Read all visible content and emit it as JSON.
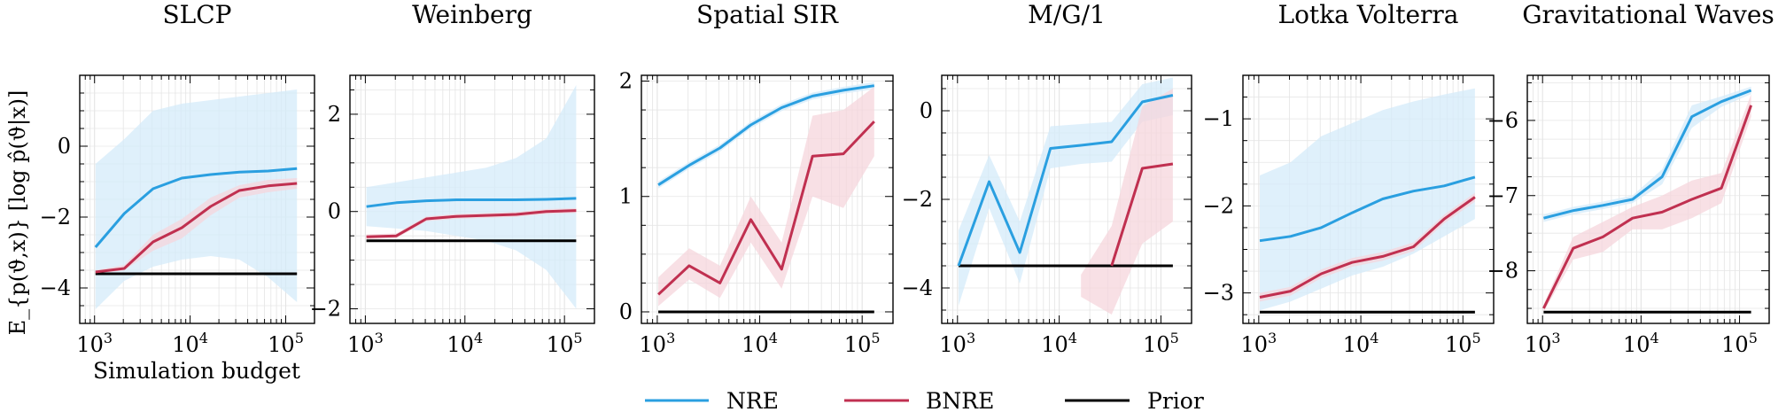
{
  "figure": {
    "ylabel": "E_{p(ϑ,x)} [log p̂(ϑ|x)]",
    "xlabel": "Simulation budget"
  },
  "colors": {
    "NRE": "#2a9fe0",
    "BNRE": "#c03050",
    "Prior": "#000000",
    "NRE_band": "#d4ebfa",
    "BNRE_band": "#f5d5dc"
  },
  "legend": {
    "placement": "bottom-center",
    "entries": [
      {
        "name": "NRE"
      },
      {
        "name": "BNRE"
      },
      {
        "name": "Prior"
      }
    ]
  },
  "chart_data": [
    {
      "type": "line",
      "title": "SLCP",
      "x_scale": "log",
      "xlim": [
        700,
        200000
      ],
      "ylim": [
        -5.0,
        2.0
      ],
      "xticks": [
        "10^3",
        "10^4",
        "10^5"
      ],
      "yticks": [
        0,
        -2,
        -4
      ],
      "grid": true,
      "x": [
        1024,
        2048,
        4096,
        8192,
        16384,
        32768,
        65536,
        131072
      ],
      "series": [
        {
          "name": "NRE",
          "values": [
            -2.85,
            -1.9,
            -1.2,
            -0.9,
            -0.8,
            -0.73,
            -0.7,
            -0.63
          ],
          "band_lower": [
            -4.6,
            -3.8,
            -3.4,
            -3.2,
            -3.1,
            -3.2,
            -3.7,
            -4.4
          ],
          "band_upper": [
            -0.5,
            0.2,
            1.0,
            1.2,
            1.3,
            1.4,
            1.5,
            1.6
          ]
        },
        {
          "name": "BNRE",
          "values": [
            -3.55,
            -3.45,
            -2.7,
            -2.3,
            -1.7,
            -1.25,
            -1.12,
            -1.05
          ],
          "band_lower": [
            -3.6,
            -3.5,
            -2.95,
            -2.6,
            -1.95,
            -1.45,
            -1.3,
            -1.2
          ],
          "band_upper": [
            -3.5,
            -3.35,
            -2.5,
            -2.05,
            -1.45,
            -1.1,
            -0.95,
            -0.9
          ]
        },
        {
          "name": "Prior",
          "values": [
            -3.6,
            -3.6,
            -3.6,
            -3.6,
            -3.6,
            -3.6,
            -3.6,
            -3.6
          ]
        }
      ]
    },
    {
      "type": "line",
      "title": "Weinberg",
      "x_scale": "log",
      "xlim": [
        700,
        200000
      ],
      "ylim": [
        -2.3,
        2.8
      ],
      "xticks": [
        "10^3",
        "10^4",
        "10^5"
      ],
      "yticks": [
        2,
        0,
        -2
      ],
      "grid": true,
      "x": [
        1024,
        2048,
        4096,
        8192,
        16384,
        32768,
        65536,
        131072
      ],
      "series": [
        {
          "name": "NRE",
          "values": [
            0.1,
            0.18,
            0.22,
            0.24,
            0.24,
            0.24,
            0.25,
            0.27
          ],
          "band_lower": [
            -0.3,
            -0.35,
            -0.4,
            -0.5,
            -0.6,
            -0.8,
            -1.2,
            -2.0
          ],
          "band_upper": [
            0.5,
            0.6,
            0.7,
            0.8,
            0.9,
            1.1,
            1.5,
            2.6
          ]
        },
        {
          "name": "BNRE",
          "values": [
            -0.52,
            -0.5,
            -0.15,
            -0.1,
            -0.08,
            -0.06,
            0.0,
            0.02
          ],
          "band_lower": [
            -0.57,
            -0.55,
            -0.2,
            -0.15,
            -0.13,
            -0.11,
            -0.05,
            -0.03
          ],
          "band_upper": [
            -0.47,
            -0.45,
            -0.1,
            -0.05,
            -0.03,
            -0.01,
            0.05,
            0.07
          ]
        },
        {
          "name": "Prior",
          "values": [
            -0.6,
            -0.6,
            -0.6,
            -0.6,
            -0.6,
            -0.6,
            -0.6,
            -0.6
          ]
        }
      ]
    },
    {
      "type": "line",
      "title": "Spatial SIR",
      "x_scale": "log",
      "xlim": [
        700,
        200000
      ],
      "ylim": [
        -0.1,
        2.05
      ],
      "xticks": [
        "10^3",
        "10^4",
        "10^5"
      ],
      "yticks": [
        2,
        1,
        0
      ],
      "grid": true,
      "x": [
        1024,
        2048,
        4096,
        8192,
        16384,
        32768,
        65536,
        131072
      ],
      "series": [
        {
          "name": "NRE",
          "values": [
            1.1,
            1.27,
            1.42,
            1.62,
            1.77,
            1.87,
            1.92,
            1.96
          ],
          "band_lower": [
            1.07,
            1.24,
            1.39,
            1.59,
            1.74,
            1.84,
            1.89,
            1.93
          ],
          "band_upper": [
            1.13,
            1.3,
            1.45,
            1.65,
            1.8,
            1.9,
            1.95,
            1.99
          ]
        },
        {
          "name": "BNRE",
          "values": [
            0.15,
            0.4,
            0.25,
            0.8,
            0.37,
            1.35,
            1.37,
            1.65
          ],
          "band_lower": [
            0.05,
            0.28,
            0.12,
            0.6,
            0.2,
            1.0,
            0.9,
            1.35
          ],
          "band_upper": [
            0.3,
            0.55,
            0.4,
            1.0,
            0.6,
            1.7,
            1.75,
            1.95
          ]
        },
        {
          "name": "Prior",
          "values": [
            0.0,
            0.0,
            0.0,
            0.0,
            0.0,
            0.0,
            0.0,
            0.0
          ]
        }
      ]
    },
    {
      "type": "line",
      "title": "M/G/1",
      "x_scale": "log",
      "xlim": [
        700,
        200000
      ],
      "ylim": [
        -4.8,
        0.8
      ],
      "xticks": [
        "10^3",
        "10^4",
        "10^5"
      ],
      "yticks": [
        0,
        -2,
        -4
      ],
      "grid": true,
      "x": [
        1024,
        2048,
        4096,
        8192,
        16384,
        32768,
        65536,
        131072
      ],
      "series": [
        {
          "name": "NRE",
          "values": [
            -3.5,
            -1.6,
            -3.2,
            -0.85,
            -0.78,
            -0.7,
            0.2,
            0.35
          ],
          "band_lower": [
            -4.4,
            -2.2,
            -3.9,
            -1.3,
            -1.2,
            -1.15,
            -0.25,
            -0.1
          ],
          "band_upper": [
            -2.7,
            -1.0,
            -2.5,
            -0.35,
            -0.3,
            -0.25,
            0.6,
            0.75
          ]
        },
        {
          "name": "BNRE",
          "values": [
            null,
            null,
            null,
            null,
            null,
            -3.5,
            -1.3,
            -1.2
          ],
          "band_lower": [
            null,
            null,
            null,
            null,
            -4.2,
            -4.6,
            -3.0,
            -2.5
          ],
          "band_upper": [
            null,
            null,
            null,
            null,
            -3.7,
            -2.6,
            0.1,
            0.5
          ]
        },
        {
          "name": "Prior",
          "values": [
            -3.5,
            -3.5,
            -3.5,
            -3.5,
            -3.5,
            -3.5,
            -3.5,
            -3.5
          ]
        }
      ]
    },
    {
      "type": "line",
      "title": "Lotka Volterra",
      "x_scale": "log",
      "xlim": [
        700,
        200000
      ],
      "ylim": [
        -3.35,
        -0.5
      ],
      "xticks": [
        "10^3",
        "10^4",
        "10^5"
      ],
      "yticks": [
        -1,
        -2,
        -3
      ],
      "grid": true,
      "x": [
        1024,
        2048,
        4096,
        8192,
        16384,
        32768,
        65536,
        131072
      ],
      "series": [
        {
          "name": "NRE",
          "values": [
            -2.4,
            -2.35,
            -2.25,
            -2.08,
            -1.92,
            -1.83,
            -1.77,
            -1.67
          ],
          "band_lower": [
            -3.2,
            -3.1,
            -2.95,
            -2.8,
            -2.7,
            -2.55,
            -2.35,
            -2.15
          ],
          "band_upper": [
            -1.65,
            -1.5,
            -1.2,
            -1.05,
            -0.9,
            -0.8,
            -0.72,
            -0.65
          ]
        },
        {
          "name": "BNRE",
          "values": [
            -3.05,
            -2.98,
            -2.78,
            -2.65,
            -2.58,
            -2.47,
            -2.15,
            -1.9
          ],
          "band_lower": [
            -3.1,
            -3.03,
            -2.83,
            -2.7,
            -2.63,
            -2.52,
            -2.2,
            -1.95
          ],
          "band_upper": [
            -3.0,
            -2.93,
            -2.73,
            -2.6,
            -2.53,
            -2.42,
            -2.1,
            -1.85
          ]
        },
        {
          "name": "Prior",
          "values": [
            -3.22,
            -3.22,
            -3.22,
            -3.22,
            -3.22,
            -3.22,
            -3.22,
            -3.22
          ]
        }
      ]
    },
    {
      "type": "line",
      "title": "Gravitational Waves",
      "x_scale": "log",
      "xlim": [
        700,
        200000
      ],
      "ylim": [
        -8.7,
        -5.4
      ],
      "xticks": [
        "10^3",
        "10^4",
        "10^5"
      ],
      "yticks": [
        -6,
        -7,
        -8
      ],
      "grid": true,
      "x": [
        1024,
        2048,
        4096,
        8192,
        16384,
        32768,
        65536,
        131072
      ],
      "series": [
        {
          "name": "NRE",
          "values": [
            -7.3,
            -7.2,
            -7.13,
            -7.05,
            -6.75,
            -5.95,
            -5.75,
            -5.6
          ],
          "band_lower": [
            -7.35,
            -7.25,
            -7.18,
            -7.1,
            -6.85,
            -6.1,
            -5.82,
            -5.65
          ],
          "band_upper": [
            -7.25,
            -7.15,
            -7.08,
            -7.0,
            -6.65,
            -5.8,
            -5.68,
            -5.55
          ]
        },
        {
          "name": "BNRE",
          "values": [
            -8.5,
            -7.7,
            -7.55,
            -7.3,
            -7.22,
            -7.05,
            -6.9,
            -5.8
          ],
          "band_lower": [
            -8.55,
            -7.85,
            -7.75,
            -7.45,
            -7.45,
            -7.3,
            -7.1,
            -5.95
          ],
          "band_upper": [
            -8.45,
            -7.55,
            -7.35,
            -7.15,
            -7.0,
            -6.8,
            -6.7,
            -5.65
          ]
        },
        {
          "name": "Prior",
          "values": [
            -8.55,
            -8.55,
            -8.55,
            -8.55,
            -8.55,
            -8.55,
            -8.55,
            -8.55
          ]
        }
      ]
    }
  ]
}
